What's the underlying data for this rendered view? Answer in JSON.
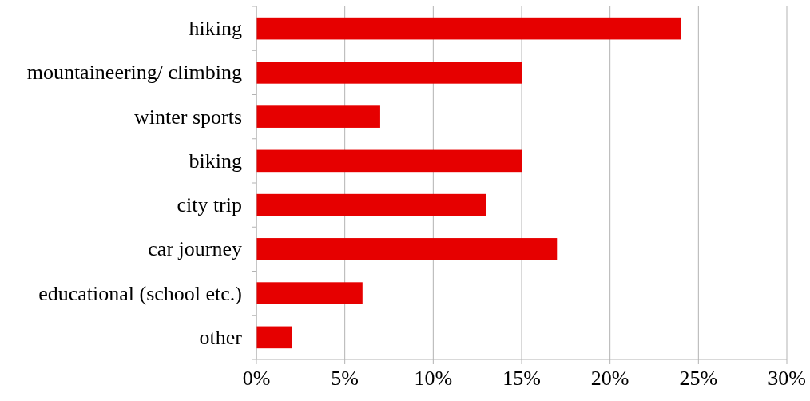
{
  "chart_data": {
    "type": "bar",
    "orientation": "horizontal",
    "categories": [
      "hiking",
      "mountaineering/ climbing",
      "winter sports",
      "biking",
      "city trip",
      "car journey",
      "educational (school etc.)",
      "other"
    ],
    "values": [
      24,
      15,
      7,
      15,
      13,
      17,
      6,
      2
    ],
    "color": "#e60000",
    "xlim": [
      0,
      30
    ],
    "xticks": [
      {
        "value": 0,
        "label": "0%"
      },
      {
        "value": 5,
        "label": "5%"
      },
      {
        "value": 10,
        "label": "10%"
      },
      {
        "value": 15,
        "label": "15%"
      },
      {
        "value": 20,
        "label": "20%"
      },
      {
        "value": 25,
        "label": "25%"
      },
      {
        "value": 30,
        "label": "30%"
      }
    ],
    "grid": "x"
  }
}
